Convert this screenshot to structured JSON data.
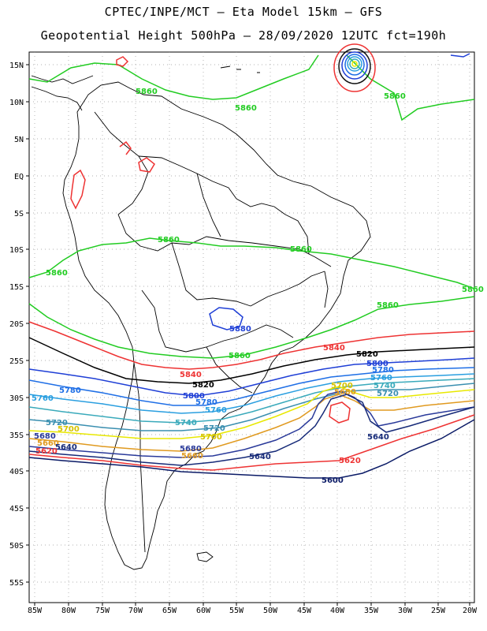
{
  "header": {
    "line1": "CPTEC/INPE/MCT –  Eta Model 15km – GFS",
    "line2": "Geopotential Height 500hPa – 28/09/2020 12UTC fct=190h"
  },
  "axes": {
    "lon_labels": [
      "85W",
      "80W",
      "75W",
      "70W",
      "65W",
      "60W",
      "55W",
      "50W",
      "45W",
      "40W",
      "35W",
      "30W",
      "25W",
      "20W"
    ],
    "lat_labels": [
      "15N",
      "10N",
      "5N",
      "EQ",
      "5S",
      "10S",
      "15S",
      "20S",
      "25S",
      "30S",
      "35S",
      "40S",
      "45S",
      "50S",
      "55S"
    ]
  },
  "contours": [
    {
      "value": "5880",
      "color": "#22cc22"
    },
    {
      "value": "5860",
      "color": "#22cc22"
    },
    {
      "value": "5840",
      "color": "#ee3333"
    },
    {
      "value": "5820",
      "color": "#000000"
    },
    {
      "value": "5800",
      "color": "#1f3fd6"
    },
    {
      "value": "5780",
      "color": "#1f6fe6"
    },
    {
      "value": "5760",
      "color": "#2a9fe0"
    },
    {
      "value": "5740",
      "color": "#3aaabb"
    },
    {
      "value": "5720",
      "color": "#3a8fb0"
    },
    {
      "value": "5700",
      "color": "#e8e800"
    },
    {
      "value": "5680",
      "color": "#e09a20"
    },
    {
      "value": "5660",
      "color": "#2a3a9a"
    },
    {
      "value": "5640",
      "color": "#162a78"
    },
    {
      "value": "5620",
      "color": "#ee3333"
    },
    {
      "value": "5600",
      "color": "#0a1a66"
    }
  ],
  "labels": {
    "g5860_a": "5860",
    "g5860_b": "5860",
    "g5860_c": "5860",
    "g5860_d": "5860",
    "g5860_e": "5860",
    "g5860_f": "5860",
    "g5860_g": "5860",
    "g5860_h": "5860",
    "g5860_i": "5860",
    "b5880": "5880",
    "r5840_a": "5840",
    "r5840_b": "5840",
    "k5820_a": "5820",
    "k5820_b": "5820",
    "c5800_a": "5800",
    "c5800_b": "5800",
    "c5780_a": "5780",
    "c5780_b": "5780",
    "c5780_c": "5780",
    "c5760_a": "5760",
    "c5760_b": "5760",
    "c5760_c": "5760",
    "c5740_a": "5740",
    "c5740_b": "5740",
    "c5720_a": "5720",
    "c5720_b": "5720",
    "c5720_c": "5720",
    "y5700_a": "5700",
    "y5700_b": "5700",
    "y5700_c": "5700",
    "o5680_a": "5680",
    "o5680_b": "5680",
    "o5680_c": "5680",
    "n5660_a": "5660",
    "n5660_b": "5660",
    "n5640_a": "5640",
    "n5640_b": "5640",
    "n5640_c": "5640",
    "r5620_a": "5620",
    "r5620_b": "5620",
    "n5600_a": "5600"
  }
}
